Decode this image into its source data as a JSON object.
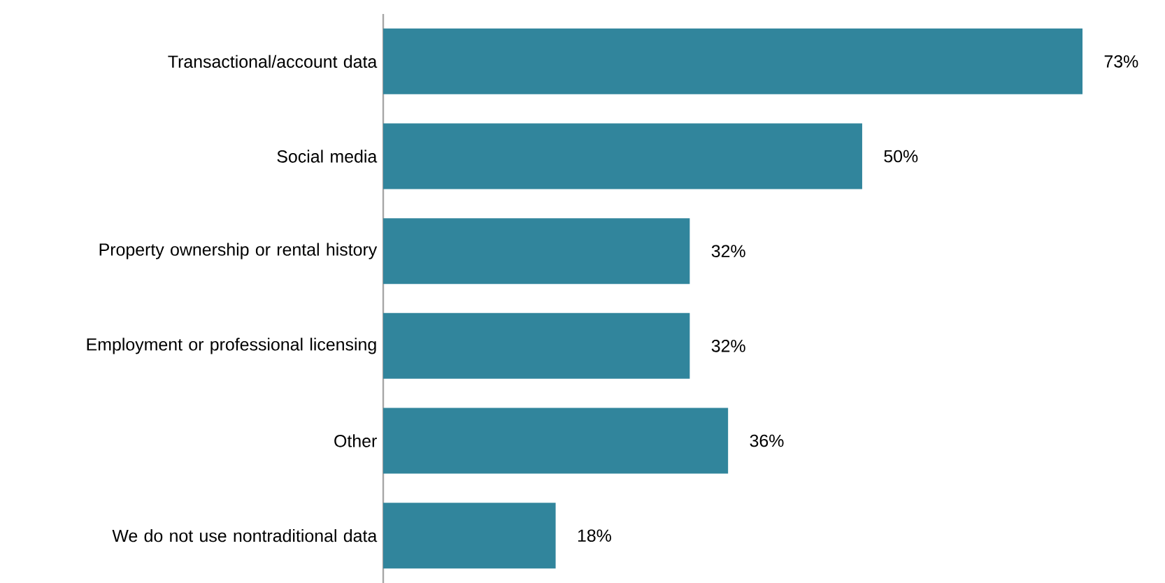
{
  "chart_data": {
    "type": "bar",
    "orientation": "horizontal",
    "categories": [
      "Transactional/account data",
      "Social media",
      "Property ownership or rental history",
      "Employment or professional licensing",
      "Other",
      "We do not use nontraditional data"
    ],
    "values": [
      73,
      50,
      32,
      32,
      36,
      18
    ],
    "value_labels": [
      "73%",
      "50%",
      "32%",
      "32%",
      "36%",
      "18%"
    ],
    "color": "#31859c"
  }
}
